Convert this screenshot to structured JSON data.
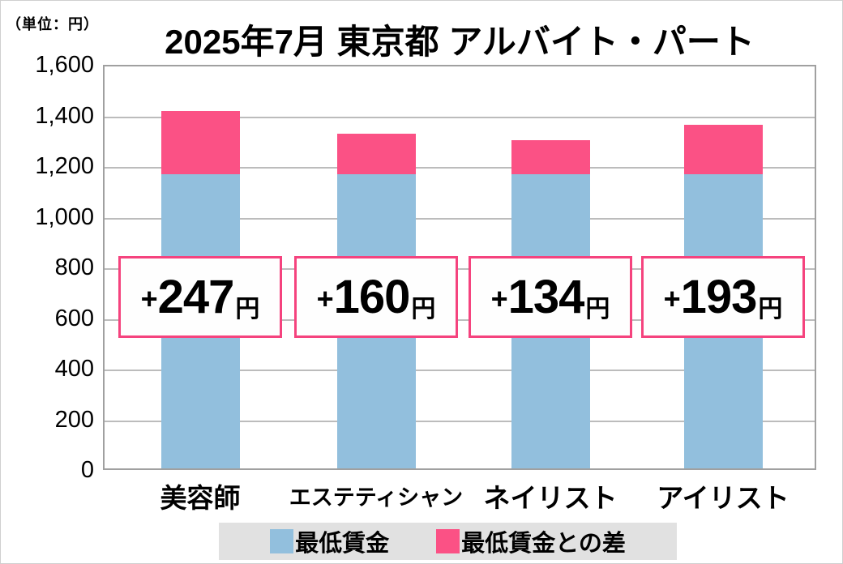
{
  "unit_label": "（単位：円）",
  "title": "2025年7月 東京都 アルバイト・パート",
  "chart_data": {
    "type": "bar",
    "stacked": true,
    "title": "2025年7月 東京都 アルバイト・パート",
    "unit": "円",
    "categories": [
      "美容師",
      "エステティシャン",
      "ネイリスト",
      "アイリスト"
    ],
    "series": [
      {
        "name": "最低賃金",
        "color": "#92BFDD",
        "values": [
          1163,
          1163,
          1163,
          1163
        ]
      },
      {
        "name": "最低賃金との差",
        "color": "#FB5185",
        "values": [
          247,
          160,
          134,
          193
        ]
      }
    ],
    "bar_totals": [
      1410,
      1323,
      1297,
      1356
    ],
    "bar_labels": [
      {
        "prefix": "+",
        "value": "247",
        "suffix": "円"
      },
      {
        "prefix": "+",
        "value": "160",
        "suffix": "円"
      },
      {
        "prefix": "+",
        "value": "134",
        "suffix": "円"
      },
      {
        "prefix": "+",
        "value": "193",
        "suffix": "円"
      }
    ],
    "ylim": [
      0,
      1600
    ],
    "ytick_interval": 200,
    "yticks": [
      "1,600",
      "1,400",
      "1,200",
      "1,000",
      "800",
      "600",
      "400",
      "200",
      "0"
    ],
    "ytick_values": [
      1600,
      1400,
      1200,
      1000,
      800,
      600,
      400,
      200,
      0
    ],
    "grid": true,
    "legend_position": "bottom"
  },
  "legend": {
    "items": [
      {
        "label": "最低賃金",
        "color": "#92BFDD"
      },
      {
        "label": "最低賃金との差",
        "color": "#FB5185"
      }
    ]
  },
  "colors": {
    "bar_blue": "#92BFDD",
    "bar_pink": "#FB5185",
    "label_box_border": "#F5437E",
    "legend_bg": "#E1E1E1",
    "gridline": "#BCBCBC",
    "frame": "#A0A0A0"
  }
}
